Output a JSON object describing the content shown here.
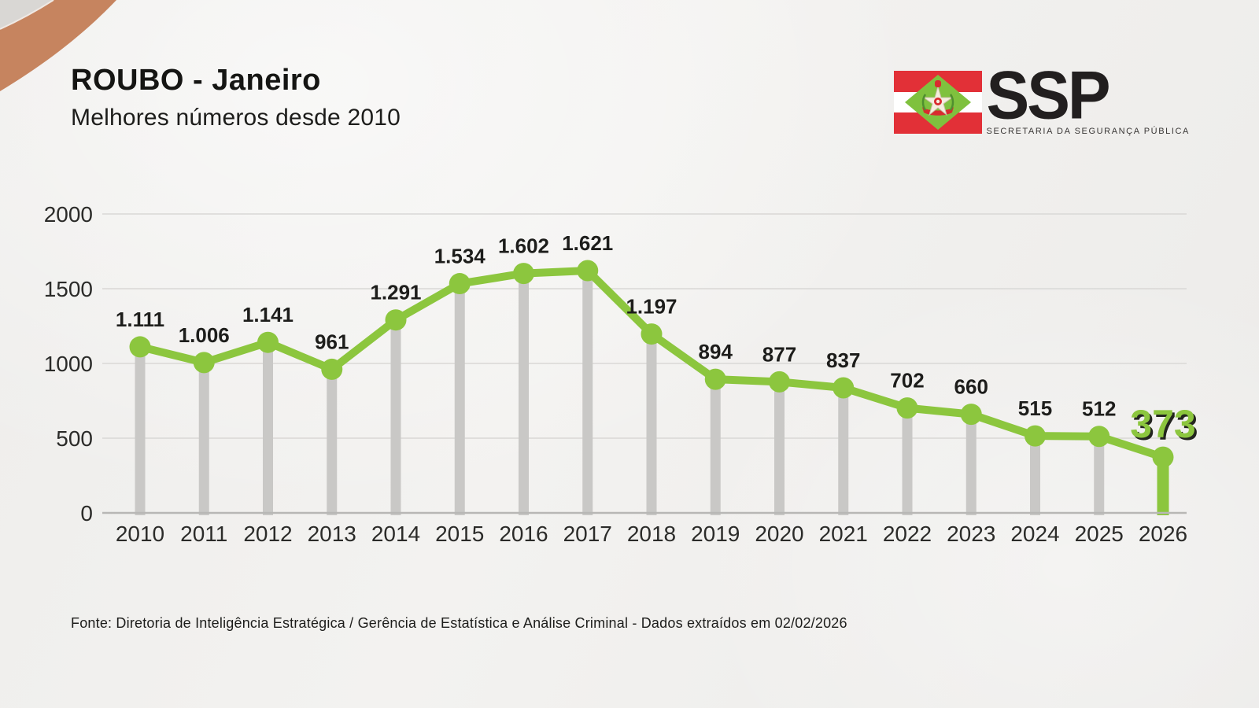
{
  "header": {
    "title": "ROUBO - Janeiro",
    "subtitle": "Melhores números desde 2010"
  },
  "logo": {
    "wordmark": "SSP",
    "subtext": "SECRETARIA DA SEGURANÇA PÚBLICA",
    "flag": "santa-catarina-flag"
  },
  "footer": {
    "source": "Fonte: Diretoria de Inteligência Estratégica / Gerência de Estatística e Análise Criminal - Dados extraídos em 02/02/2026"
  },
  "colors": {
    "accent_green": "#8cc63e",
    "drop_bar_gray": "#c9c8c6",
    "grid_gray": "#d9d8d6",
    "axis_gray": "#b8b7b5",
    "text_dark": "#1d1d1b",
    "swoosh_copper": "#c6845f",
    "flag_red": "#e23037",
    "flag_green": "#7fc13e",
    "background": "#f0efed"
  },
  "chart_data": {
    "type": "line",
    "title": "ROUBO - Janeiro",
    "subtitle": "Melhores números desde 2010",
    "categories": [
      "2010",
      "2011",
      "2012",
      "2013",
      "2014",
      "2015",
      "2016",
      "2017",
      "2018",
      "2019",
      "2020",
      "2021",
      "2022",
      "2023",
      "2024",
      "2025",
      "2026"
    ],
    "values": [
      1111,
      1006,
      1141,
      961,
      1291,
      1534,
      1602,
      1621,
      1197,
      894,
      877,
      837,
      702,
      660,
      515,
      512,
      373
    ],
    "point_labels": [
      "1.111",
      "1.006",
      "1.141",
      "961",
      "1.291",
      "1.534",
      "1.602",
      "1.621",
      "1.197",
      "894",
      "877",
      "837",
      "702",
      "660",
      "515",
      "512",
      "373"
    ],
    "highlight_index": 16,
    "highlight_label": "373",
    "y_ticks": [
      0,
      500,
      1000,
      1500,
      2000
    ],
    "ylim": [
      0,
      2000
    ],
    "xlabel": "",
    "ylabel": "",
    "grid": true,
    "legend": false,
    "line_color": "#8cc63e",
    "marker_color": "#8cc63e",
    "drop_bar_color": "#c9c8c6",
    "highlight_bar_color": "#8cc63e",
    "label_color": "#1d1d1b"
  }
}
